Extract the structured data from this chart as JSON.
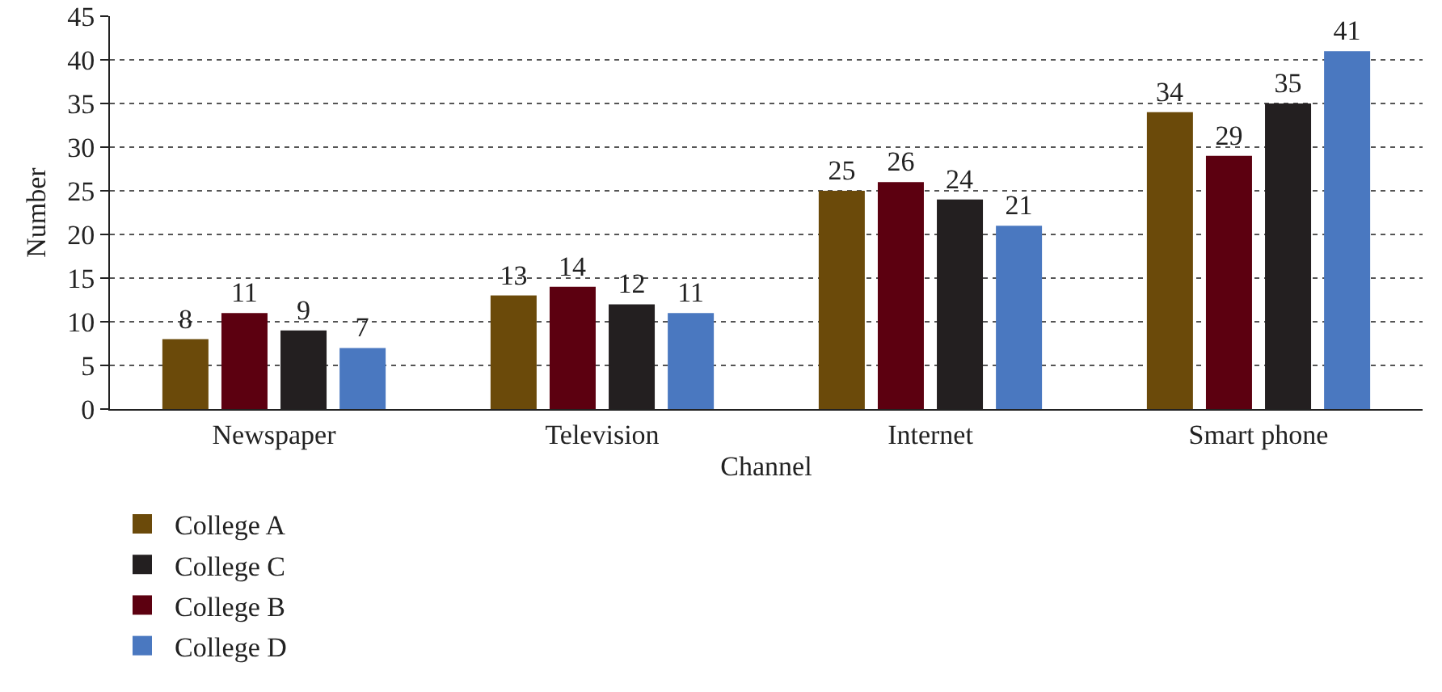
{
  "chart_data": {
    "type": "bar",
    "xlabel": "Channel",
    "ylabel": "Number",
    "categories": [
      "Newspaper",
      "Television",
      "Internet",
      "Smart phone"
    ],
    "series": [
      {
        "name": "College A",
        "color": "#6b4a0a",
        "values": [
          8,
          13,
          25,
          34
        ]
      },
      {
        "name": "College B",
        "color": "#5c0010",
        "values": [
          11,
          14,
          26,
          29
        ]
      },
      {
        "name": "College C",
        "color": "#231f20",
        "values": [
          9,
          12,
          24,
          35
        ]
      },
      {
        "name": "College D",
        "color": "#4a78c0",
        "values": [
          7,
          11,
          21,
          41
        ]
      }
    ],
    "ylim": [
      0,
      45
    ],
    "yticks": [
      0,
      5,
      10,
      15,
      20,
      25,
      30,
      35,
      40,
      45
    ],
    "grid": "y",
    "legend": "bottom",
    "data_labels": true
  }
}
